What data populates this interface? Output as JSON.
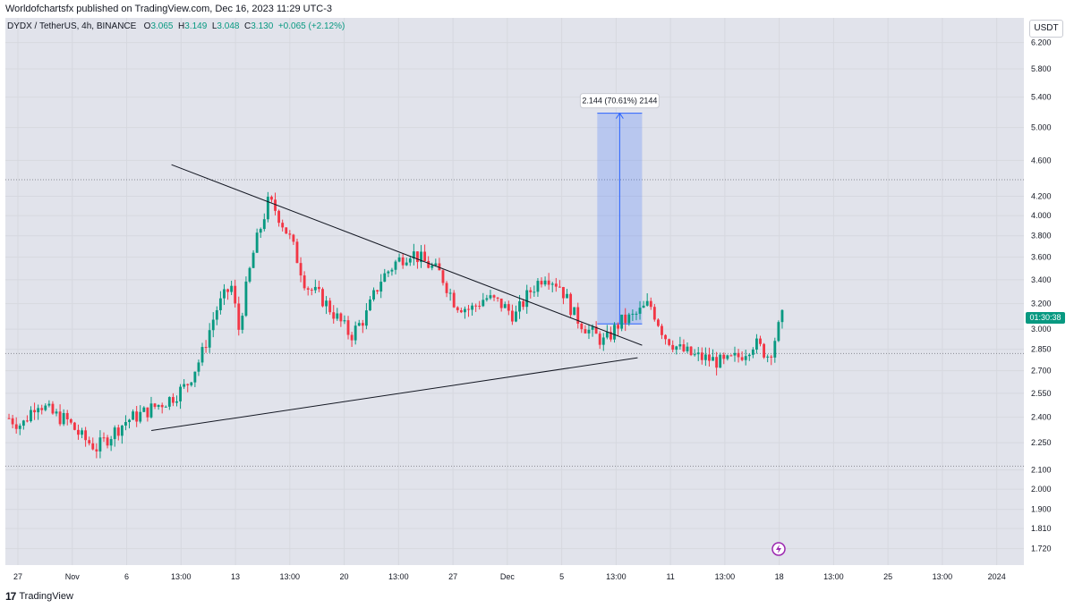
{
  "publisher": "Worldofchartsfx published on TradingView.com, Dec 16, 2023 11:29 UTC-3",
  "legend": {
    "symbol": "DYDX / TetherUS, 4h, BINANCE",
    "o_label": "O",
    "o": "3.065",
    "h_label": "H",
    "h": "3.149",
    "l_label": "L",
    "l": "3.048",
    "c_label": "C",
    "c": "3.130",
    "change": "+0.065 (+2.12%)"
  },
  "currency_badge": "USDT",
  "countdown": "01:30:38",
  "footer_brand": "TradingView",
  "colors": {
    "up": "#089981",
    "down": "#f23645",
    "projection": "#2962ff",
    "background": "#e1e3eb"
  },
  "chart_data": {
    "type": "candlestick",
    "symbol": "DYDX / TetherUS",
    "timeframe": "4h",
    "exchange": "BINANCE",
    "y_scale": "log",
    "ylim": [
      1.65,
      6.6
    ],
    "y_ticks": [
      "6.200",
      "5.800",
      "5.400",
      "5.000",
      "4.600",
      "4.200",
      "4.000",
      "3.800",
      "3.600",
      "3.400",
      "3.200",
      "3.000",
      "2.850",
      "2.700",
      "2.550",
      "2.400",
      "2.250",
      "2.100",
      "2.000",
      "1.900",
      "1.810",
      "1.720"
    ],
    "x_ticks": [
      "27",
      "Nov",
      "6",
      "13:00",
      "13",
      "13:00",
      "20",
      "13:00",
      "27",
      "Dec",
      "5",
      "13:00",
      "11",
      "13:00",
      "18",
      "13:00",
      "25",
      "13:00",
      "2024"
    ],
    "horizontal_levels": [
      4.38,
      2.82,
      2.12
    ],
    "close_path": [
      {
        "t": 0,
        "v": 2.4
      },
      {
        "t": 2,
        "v": 2.35
      },
      {
        "t": 4,
        "v": 2.5
      },
      {
        "t": 6,
        "v": 2.42
      },
      {
        "t": 8,
        "v": 2.38
      },
      {
        "t": 10,
        "v": 2.28
      },
      {
        "t": 12,
        "v": 2.22
      },
      {
        "t": 14,
        "v": 2.3
      },
      {
        "t": 16,
        "v": 2.38
      },
      {
        "t": 18,
        "v": 2.42
      },
      {
        "t": 20,
        "v": 2.47
      },
      {
        "t": 22,
        "v": 2.52
      },
      {
        "t": 24,
        "v": 2.6
      },
      {
        "t": 26,
        "v": 2.8
      },
      {
        "t": 28,
        "v": 3.15
      },
      {
        "t": 30,
        "v": 3.35
      },
      {
        "t": 31,
        "v": 3.0
      },
      {
        "t": 33,
        "v": 3.65
      },
      {
        "t": 35,
        "v": 4.15
      },
      {
        "t": 36,
        "v": 4.05
      },
      {
        "t": 38,
        "v": 3.75
      },
      {
        "t": 40,
        "v": 3.35
      },
      {
        "t": 42,
        "v": 3.25
      },
      {
        "t": 44,
        "v": 3.1
      },
      {
        "t": 46,
        "v": 2.95
      },
      {
        "t": 48,
        "v": 3.1
      },
      {
        "t": 50,
        "v": 3.4
      },
      {
        "t": 52,
        "v": 3.55
      },
      {
        "t": 54,
        "v": 3.65
      },
      {
        "t": 56,
        "v": 3.55
      },
      {
        "t": 58,
        "v": 3.45
      },
      {
        "t": 60,
        "v": 3.2
      },
      {
        "t": 62,
        "v": 3.15
      },
      {
        "t": 64,
        "v": 3.25
      },
      {
        "t": 66,
        "v": 3.2
      },
      {
        "t": 68,
        "v": 3.1
      },
      {
        "t": 70,
        "v": 3.3
      },
      {
        "t": 72,
        "v": 3.45
      },
      {
        "t": 74,
        "v": 3.35
      },
      {
        "t": 76,
        "v": 3.1
      },
      {
        "t": 78,
        "v": 2.98
      },
      {
        "t": 80,
        "v": 2.9
      },
      {
        "t": 82,
        "v": 3.05
      },
      {
        "t": 84,
        "v": 3.1
      },
      {
        "t": 86,
        "v": 3.2
      },
      {
        "t": 88,
        "v": 2.95
      },
      {
        "t": 90,
        "v": 2.85
      },
      {
        "t": 92,
        "v": 2.8
      },
      {
        "t": 94,
        "v": 2.78
      },
      {
        "t": 96,
        "v": 2.75
      },
      {
        "t": 98,
        "v": 2.8
      },
      {
        "t": 100,
        "v": 2.9
      },
      {
        "t": 102,
        "v": 2.8
      },
      {
        "t": 104,
        "v": 3.13
      }
    ],
    "t_range": [
      0,
      104
    ],
    "trendlines": [
      {
        "t1": 22.0,
        "v1": 4.55,
        "t2": 85.0,
        "v2": 2.88
      },
      {
        "t1": 19.3,
        "v1": 2.32,
        "t2": 84.4,
        "v2": 2.79
      }
    ],
    "projection": {
      "label": "2.144 (70.61%) 2144",
      "t_start": 79.0,
      "t_end": 85.0,
      "from": 3.04,
      "to": 5.184,
      "change": 2.144,
      "change_pct": 70.61,
      "ticks": 2144
    }
  }
}
